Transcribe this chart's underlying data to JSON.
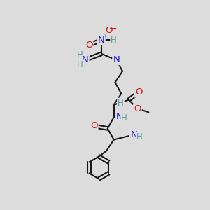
{
  "bg_color": "#dcdcdc",
  "bond_color": "#1a1a1a",
  "bond_lw": 1.5,
  "colors": {
    "H": "#5a9e9e",
    "N": "#1a1acc",
    "O": "#cc1414",
    "bond": "#1a1a1a"
  },
  "fs": 9.5,
  "fsh": 8.5,
  "figsize": [
    3.0,
    3.0
  ],
  "dpi": 100,
  "xlim": [
    0,
    10
  ],
  "ylim": [
    0,
    13
  ]
}
